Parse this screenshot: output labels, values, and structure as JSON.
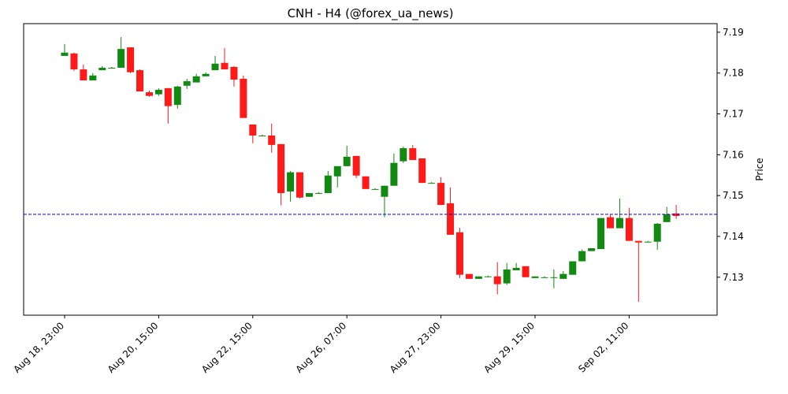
{
  "chart_data": {
    "type": "candlestick",
    "title": "CNH - H4 (@forex_ua_news)",
    "y_label": "Price",
    "y_axis_side": "right",
    "categories": [
      "Aug 18, 23:00",
      null,
      null,
      null,
      null,
      null,
      null,
      null,
      null,
      null,
      "Aug 20, 15:00",
      null,
      null,
      null,
      null,
      null,
      null,
      null,
      null,
      null,
      "Aug 22, 15:00",
      null,
      null,
      null,
      null,
      null,
      null,
      null,
      null,
      null,
      "Aug 26, 07:00",
      null,
      null,
      null,
      null,
      null,
      null,
      null,
      null,
      null,
      "Aug 27, 23:00",
      null,
      null,
      null,
      null,
      null,
      null,
      null,
      null,
      null,
      "Aug 29, 15:00",
      null,
      null,
      null,
      null,
      null,
      null,
      null,
      null,
      null,
      "Sep 02, 11:00",
      null,
      null,
      null,
      null,
      null
    ],
    "open": [
      7.1842,
      7.1848,
      7.1809,
      7.1782,
      7.1807,
      7.1813,
      7.1813,
      7.1863,
      7.1807,
      7.1753,
      7.1748,
      7.1763,
      7.1722,
      7.1769,
      7.1777,
      7.1792,
      7.1807,
      7.1825,
      7.1815,
      7.1786,
      7.1674,
      7.1647,
      7.1647,
      7.1626,
      7.151,
      7.1557,
      7.1497,
      7.1506,
      7.1506,
      7.1547,
      7.1572,
      7.1597,
      7.1547,
      7.1516,
      7.1497,
      7.1524,
      7.1584,
      7.1616,
      7.1591,
      7.1531,
      7.1531,
      7.1481,
      7.141,
      7.1308,
      7.1296,
      7.1302,
      7.1302,
      7.1285,
      7.1317,
      7.1327,
      7.1298,
      7.13,
      7.13,
      7.1296,
      7.1306,
      7.1339,
      7.1364,
      7.1369,
      7.1447,
      7.142,
      7.1445,
      7.1389,
      7.1387,
      7.1387,
      7.1435,
      7.1456
    ],
    "high": [
      7.1871,
      7.185,
      7.1821,
      7.18,
      7.1817,
      7.1815,
      7.1888,
      7.1863,
      7.1809,
      7.1757,
      7.1763,
      7.1763,
      7.1769,
      7.1786,
      7.1798,
      7.1802,
      7.1842,
      7.1861,
      7.1817,
      7.1794,
      7.1674,
      7.1649,
      7.1676,
      7.1626,
      7.156,
      7.1557,
      7.1506,
      7.1508,
      7.156,
      7.1572,
      7.1622,
      7.1597,
      7.1547,
      7.1518,
      7.1524,
      7.1603,
      7.162,
      7.1624,
      7.1591,
      7.1533,
      7.1545,
      7.152,
      7.1421,
      7.1308,
      7.1302,
      7.1304,
      7.1337,
      7.1335,
      7.1335,
      7.1327,
      7.1302,
      7.1302,
      7.1319,
      7.1315,
      7.1339,
      7.1368,
      7.1371,
      7.1445,
      7.1453,
      7.1493,
      7.147,
      7.1389,
      7.1389,
      7.1433,
      7.1472,
      7.1477
    ],
    "low": [
      7.1842,
      7.1805,
      7.1782,
      7.1782,
      7.1807,
      7.1811,
      7.1813,
      7.18,
      7.1755,
      7.1742,
      7.1744,
      7.1676,
      7.1713,
      7.1761,
      7.1777,
      7.1792,
      7.1807,
      7.1809,
      7.1767,
      7.169,
      7.1628,
      7.1645,
      7.1605,
      7.1476,
      7.1485,
      7.1493,
      7.1497,
      7.1504,
      7.1506,
      7.152,
      7.1572,
      7.1543,
      7.1516,
      7.1514,
      7.1447,
      7.1524,
      7.158,
      7.1587,
      7.1531,
      7.1529,
      7.1477,
      7.1404,
      7.1298,
      7.1296,
      7.1296,
      7.13,
      7.1258,
      7.1281,
      7.1317,
      7.13,
      7.1298,
      7.1298,
      7.1273,
      7.1296,
      7.1306,
      7.1339,
      7.1364,
      7.1369,
      7.142,
      7.142,
      7.1389,
      7.124,
      7.1385,
      7.1367,
      7.1435,
      7.1443
    ],
    "close": [
      7.185,
      7.1809,
      7.1782,
      7.1794,
      7.1813,
      7.1813,
      7.1859,
      7.1802,
      7.1755,
      7.1744,
      7.1759,
      7.1719,
      7.1767,
      7.178,
      7.1792,
      7.1798,
      7.1823,
      7.1809,
      7.1784,
      7.169,
      7.1647,
      7.1647,
      7.1624,
      7.1506,
      7.1557,
      7.1495,
      7.1506,
      7.1506,
      7.1549,
      7.1572,
      7.1595,
      7.1549,
      7.1516,
      7.1516,
      7.1524,
      7.158,
      7.1616,
      7.1587,
      7.1531,
      7.1531,
      7.1477,
      7.1404,
      7.1306,
      7.1296,
      7.1302,
      7.1302,
      7.1283,
      7.1319,
      7.1323,
      7.13,
      7.1302,
      7.13,
      7.13,
      7.1308,
      7.1339,
      7.1364,
      7.1371,
      7.1445,
      7.142,
      7.1445,
      7.1389,
      7.1385,
      7.1387,
      7.1431,
      7.1454,
      7.145
    ],
    "up_color": "#128a12",
    "down_color": "#ff1a1a",
    "ylim": [
      7.1207,
      7.1921
    ],
    "yticks": [
      7.13,
      7.14,
      7.15,
      7.16,
      7.17,
      7.18,
      7.19
    ],
    "hline": {
      "value": 7.1454,
      "color": "#0000dd"
    }
  }
}
